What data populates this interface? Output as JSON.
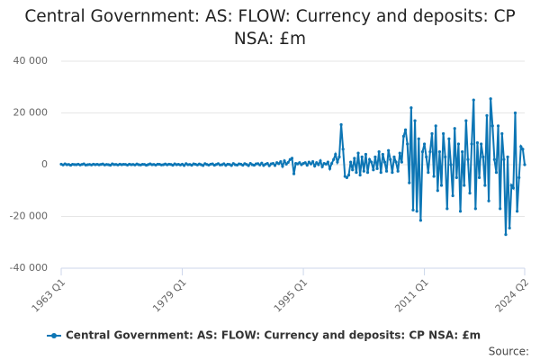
{
  "chart_data": {
    "type": "line",
    "title": "Central Government: AS: FLOW: Currency and deposits: CP NSA: £m",
    "source": "Source:",
    "categories": [
      "1963 Q1",
      null,
      null,
      null,
      null,
      null,
      null,
      null,
      null,
      null,
      null,
      null,
      null,
      null,
      null,
      null,
      null,
      null,
      null,
      null,
      null,
      null,
      null,
      null,
      null,
      null,
      null,
      null,
      null,
      null,
      null,
      null,
      null,
      null,
      null,
      null,
      null,
      null,
      null,
      null,
      null,
      null,
      null,
      null,
      null,
      null,
      null,
      null,
      null,
      null,
      null,
      null,
      null,
      null,
      null,
      null,
      null,
      null,
      null,
      null,
      null,
      null,
      null,
      null,
      "1979 Q1",
      null,
      null,
      null,
      null,
      null,
      null,
      null,
      null,
      null,
      null,
      null,
      null,
      null,
      null,
      null,
      null,
      null,
      null,
      null,
      null,
      null,
      null,
      null,
      null,
      null,
      null,
      null,
      null,
      null,
      null,
      null,
      null,
      null,
      null,
      null,
      null,
      null,
      null,
      null,
      null,
      null,
      null,
      null,
      null,
      null,
      null,
      null,
      null,
      null,
      null,
      null,
      null,
      null,
      null,
      null,
      null,
      null,
      null,
      null,
      null,
      null,
      null,
      null,
      "1995 Q1",
      null,
      null,
      null,
      null,
      null,
      null,
      null,
      null,
      null,
      null,
      null,
      null,
      null,
      null,
      null,
      null,
      null,
      null,
      null,
      null,
      null,
      null,
      null,
      null,
      null,
      null,
      null,
      null,
      null,
      null,
      null,
      null,
      null,
      null,
      null,
      null,
      null,
      null,
      null,
      null,
      null,
      null,
      null,
      null,
      null,
      null,
      null,
      null,
      null,
      null,
      null,
      null,
      null,
      null,
      null,
      null,
      null,
      null,
      null,
      null,
      null,
      null,
      null,
      "2011 Q1",
      null,
      null,
      null,
      null,
      null,
      null,
      null,
      null,
      null,
      null,
      null,
      null,
      null,
      null,
      null,
      null,
      null,
      null,
      null,
      null,
      null,
      null,
      null,
      null,
      null,
      null,
      null,
      null,
      null,
      null,
      null,
      null,
      null,
      null,
      null,
      null,
      null,
      null,
      null,
      null,
      null,
      null,
      null,
      null,
      null,
      null,
      null,
      null,
      null,
      null,
      null,
      null,
      "2024 Q2"
    ],
    "series": [
      {
        "name": "Central Government: AS: FLOW: Currency and deposits: CP NSA: £m",
        "color": "#0d76b5",
        "values": [
          200,
          -100,
          300,
          0,
          100,
          -200,
          150,
          50,
          0,
          200,
          -100,
          100,
          300,
          -150,
          0,
          100,
          -100,
          200,
          0,
          150,
          -50,
          100,
          250,
          -100,
          100,
          0,
          -200,
          300,
          50,
          100,
          -100,
          200,
          0,
          150,
          100,
          -150,
          200,
          0,
          100,
          -100,
          250,
          0,
          -100,
          150,
          100,
          -200,
          50,
          300,
          0,
          100,
          -150,
          200,
          150,
          -100,
          0,
          250,
          -50,
          200,
          100,
          -200,
          300,
          0,
          150,
          -100,
          200,
          -300,
          400,
          0,
          100,
          -200,
          300,
          150,
          -100,
          250,
          0,
          -300,
          400,
          100,
          -150,
          200,
          300,
          -200,
          100,
          400,
          -100,
          0,
          350,
          -250,
          200,
          100,
          -300,
          450,
          0,
          -150,
          300,
          200,
          -200,
          400,
          100,
          -350,
          500,
          0,
          -200,
          300,
          400,
          -100,
          600,
          -300,
          200,
          500,
          -400,
          300,
          500,
          -300,
          800,
          400,
          1200,
          -600,
          1500,
          200,
          900,
          2000,
          2500,
          -3500,
          500,
          300,
          800,
          0,
          500,
          800,
          -200,
          1000,
          300,
          1200,
          -500,
          800,
          0,
          1500,
          -800,
          500,
          200,
          1000,
          -1500,
          500,
          2000,
          4000,
          1000,
          3000,
          15500,
          6000,
          -4500,
          -5000,
          -4000,
          1000,
          -2000,
          2500,
          -3000,
          4500,
          -4000,
          3000,
          -2500,
          4000,
          -3000,
          2000,
          1000,
          -2000,
          3000,
          -1500,
          5000,
          -3000,
          4000,
          1000,
          -2500,
          5500,
          2000,
          -3000,
          3000,
          1000,
          -2500,
          4500,
          1000,
          11000,
          13500,
          8000,
          -7000,
          22000,
          -17500,
          17000,
          -18000,
          10000,
          -21500,
          5000,
          8000,
          3000,
          -3000,
          5000,
          12000,
          -4500,
          15000,
          -10000,
          5000,
          -8000,
          12000,
          3000,
          -17000,
          10000,
          0,
          -12000,
          14000,
          -5000,
          8000,
          -18000,
          5000,
          -8000,
          17000,
          2000,
          -11000,
          8000,
          25000,
          -17000,
          8500,
          -5000,
          8000,
          3000,
          -8000,
          19000,
          -14000,
          25500,
          15000,
          2000,
          -3000,
          15000,
          -17000,
          12000,
          2000,
          -27000,
          3000,
          -24500,
          -8000,
          -9000,
          20000,
          -18000,
          -5000,
          7000,
          6000,
          0
        ]
      }
    ],
    "ylim": [
      -40000,
      40000
    ],
    "yticks": [
      {
        "value": -40000,
        "label": "-40 000"
      },
      {
        "value": -20000,
        "label": "-20 000"
      },
      0,
      {
        "value": 20000,
        "label": "20 000"
      },
      {
        "value": 40000,
        "label": "40 000"
      }
    ],
    "grid": true
  }
}
